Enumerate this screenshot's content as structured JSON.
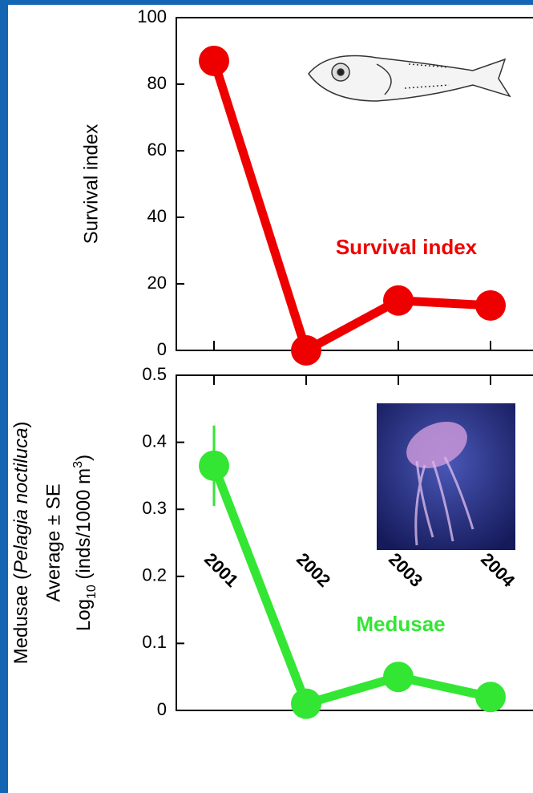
{
  "chart_data": [
    {
      "type": "line",
      "ylabel": "Survival index",
      "annotation": "Survival index",
      "values": [
        87,
        0,
        15,
        13.5
      ],
      "color": "#ee0000",
      "ylim": [
        0,
        100
      ],
      "yticks": [
        0,
        20,
        40,
        60,
        80,
        100
      ]
    },
    {
      "type": "line",
      "ylabel": [
        "Medusae (",
        "Pelagia noctiluca",
        ")"
      ],
      "ylabel2": "Average ± SE",
      "ylabel3": [
        "Log",
        "10",
        " (inds/1000 m",
        "3",
        ")"
      ],
      "annotation": "Medusae",
      "categories": [
        "2001",
        "2002",
        "2003",
        "2004"
      ],
      "values": [
        0.365,
        0.01,
        0.05,
        0.02
      ],
      "errors": [
        0.06,
        null,
        null,
        null
      ],
      "color": "#33e633",
      "ylim": [
        0,
        0.5
      ],
      "yticks": [
        0,
        0.1,
        0.2,
        0.3,
        0.4,
        0.5
      ]
    }
  ]
}
